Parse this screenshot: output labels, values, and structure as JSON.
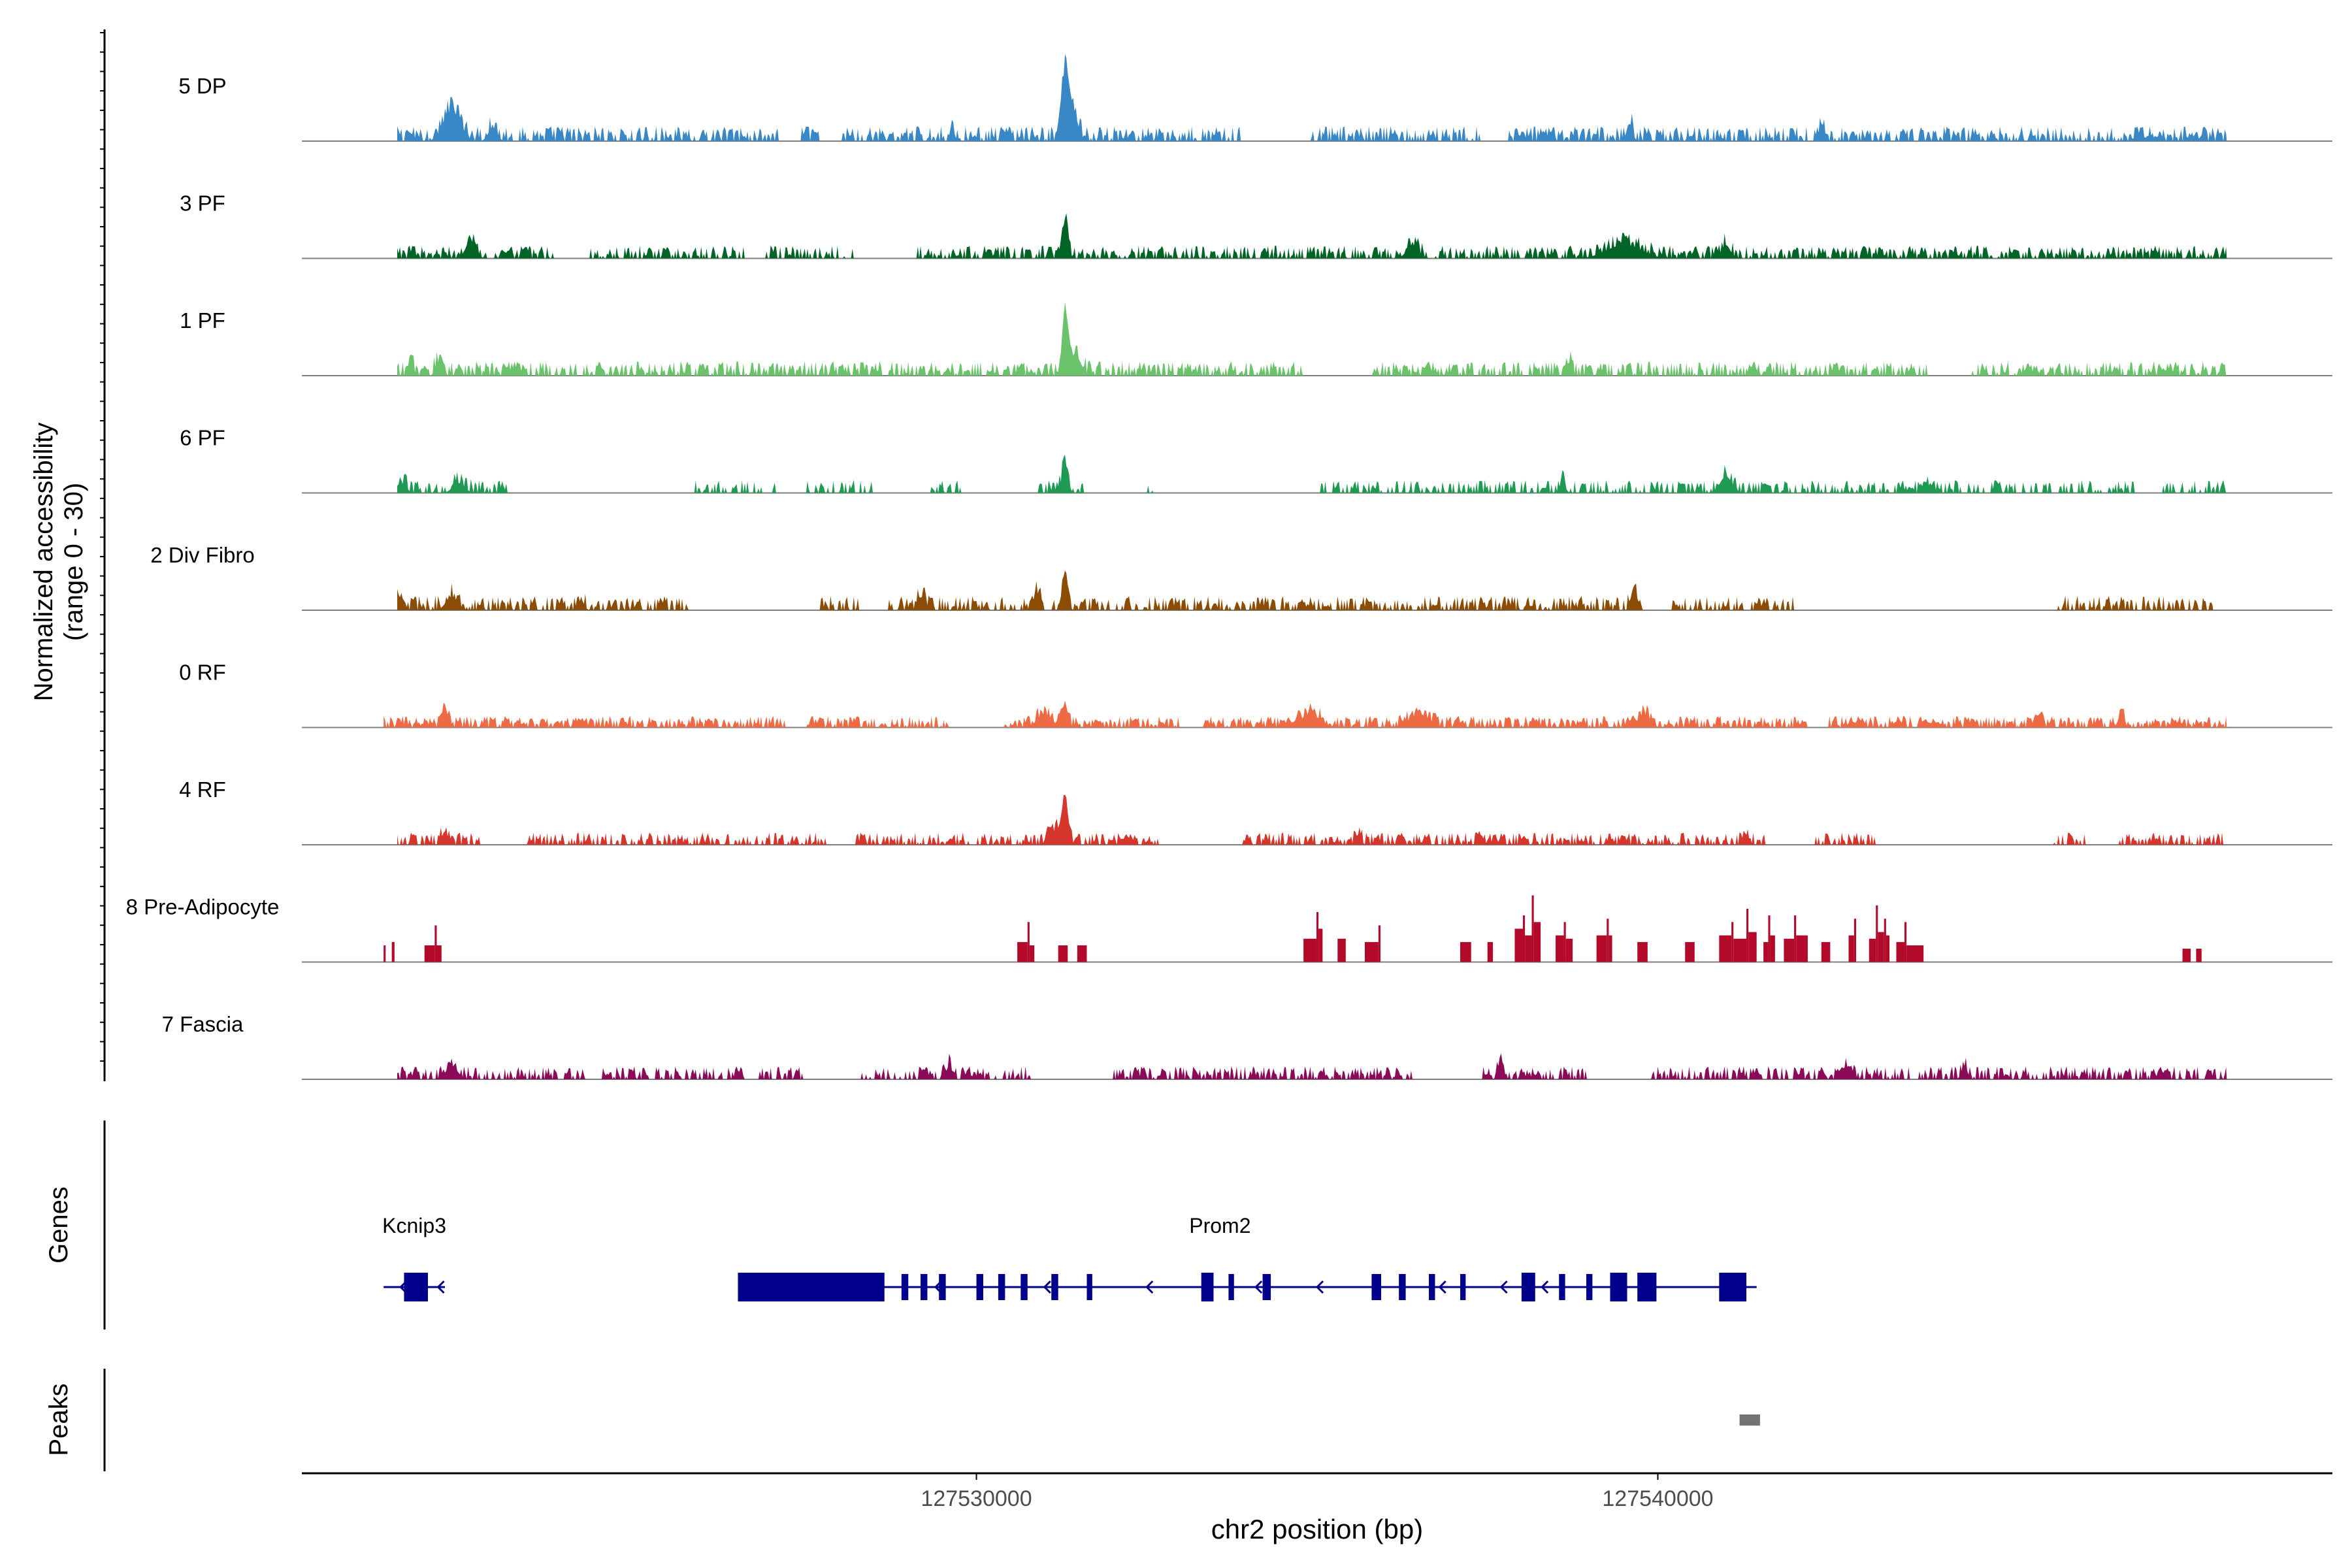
{
  "chart_data": {
    "type": "area",
    "title": "",
    "ylabel_line1": "Normalized accessibility",
    "ylabel_line2": "(range 0 - 30)",
    "xlabel": "chr2 position (bp)",
    "xlim": [
      127520100,
      127549900
    ],
    "ylim": [
      0,
      30
    ],
    "x_ticks": [
      {
        "value": 127530000,
        "label": "127530000"
      },
      {
        "value": 127540000,
        "label": "127540000"
      }
    ],
    "series": [
      {
        "name": "5 DP",
        "color": "#3a87c6",
        "start": 127521500,
        "end": 127548350,
        "base": 1.8,
        "noise": 0.55,
        "sparsity": 0.3,
        "gaps": [
          [
            127527100,
            127527400
          ],
          [
            127527700,
            127528000
          ],
          [
            127533900,
            127534900
          ],
          [
            127537400,
            127537800
          ]
        ],
        "peaks": [
          [
            127522300,
            170,
            9
          ],
          [
            127522900,
            90,
            4
          ],
          [
            127531300,
            70,
            18
          ],
          [
            127531400,
            110,
            10
          ],
          [
            127539600,
            50,
            5
          ],
          [
            127542400,
            60,
            4
          ],
          [
            127529650,
            40,
            4
          ]
        ]
      },
      {
        "name": "3 PF",
        "color": "#006427",
        "start": 127521500,
        "end": 127548350,
        "base": 1.6,
        "noise": 0.5,
        "sparsity": 0.35,
        "gaps": [
          [
            127523800,
            127524300
          ],
          [
            127526600,
            127526900
          ],
          [
            127528200,
            127529100
          ]
        ],
        "peaks": [
          [
            127522600,
            90,
            5
          ],
          [
            127531300,
            60,
            11
          ],
          [
            127536400,
            120,
            4
          ],
          [
            127539500,
            350,
            4
          ],
          [
            127541000,
            90,
            4
          ]
        ]
      },
      {
        "name": "1 PF",
        "color": "#6ac36b",
        "start": 127521500,
        "end": 127548350,
        "base": 1.8,
        "noise": 0.5,
        "sparsity": 0.3,
        "gaps": [
          [
            127534800,
            127535800
          ],
          [
            127544000,
            127544600
          ]
        ],
        "peaks": [
          [
            127521700,
            50,
            4
          ],
          [
            127522100,
            60,
            4
          ],
          [
            127531300,
            60,
            18
          ],
          [
            127531450,
            120,
            6
          ],
          [
            127535300,
            60,
            3
          ],
          [
            127538700,
            60,
            4
          ]
        ]
      },
      {
        "name": "6 PF",
        "color": "#1f9a52",
        "start": 127521500,
        "end": 127548350,
        "base": 1.7,
        "noise": 0.45,
        "sparsity": 0.45,
        "gaps": [
          [
            127523200,
            127525800
          ],
          [
            127527100,
            127527500
          ],
          [
            127528500,
            127529300
          ],
          [
            127529800,
            127530900
          ],
          [
            127531600,
            127532500
          ],
          [
            127532600,
            127535000
          ],
          [
            127547000,
            127547400
          ]
        ],
        "peaks": [
          [
            127521600,
            60,
            3
          ],
          [
            127522400,
            120,
            3
          ],
          [
            127525100,
            40,
            3
          ],
          [
            127527300,
            40,
            2
          ],
          [
            127531300,
            60,
            9
          ],
          [
            127538600,
            60,
            3
          ],
          [
            127541000,
            120,
            5
          ],
          [
            127544000,
            40,
            3
          ]
        ]
      },
      {
        "name": "2 Div Fibro",
        "color": "#8b4c06",
        "start": 127521500,
        "end": 127548150,
        "base": 1.8,
        "noise": 0.5,
        "sparsity": 0.35,
        "gaps": [
          [
            127525800,
            127527700
          ],
          [
            127528300,
            127528700
          ],
          [
            127531000,
            127531100
          ],
          [
            127539800,
            127540200
          ],
          [
            127542000,
            127545800
          ]
        ],
        "peaks": [
          [
            127521500,
            80,
            5
          ],
          [
            127522300,
            120,
            4
          ],
          [
            127524200,
            60,
            3
          ],
          [
            127529200,
            80,
            4
          ],
          [
            127530900,
            90,
            5
          ],
          [
            127531300,
            60,
            8
          ],
          [
            127539650,
            60,
            7
          ]
        ]
      },
      {
        "name": "0 RF",
        "color": "#ee6a44",
        "start": 127521300,
        "end": 127548350,
        "base": 1.5,
        "noise": 0.45,
        "sparsity": 0.25,
        "gaps": [
          [
            127527200,
            127527500
          ],
          [
            127529600,
            127530400
          ],
          [
            127533000,
            127533300
          ],
          [
            127542200,
            127542500
          ]
        ],
        "peaks": [
          [
            127522200,
            60,
            5
          ],
          [
            127531000,
            150,
            4
          ],
          [
            127531300,
            60,
            7
          ],
          [
            127534900,
            200,
            4
          ],
          [
            127536500,
            200,
            4
          ],
          [
            127539800,
            120,
            4
          ],
          [
            127545600,
            60,
            4
          ],
          [
            127546800,
            60,
            4
          ]
        ]
      },
      {
        "name": "4 RF",
        "color": "#d5352a",
        "start": 127521500,
        "end": 127548350,
        "base": 1.6,
        "noise": 0.45,
        "sparsity": 0.35,
        "gaps": [
          [
            127522800,
            127523400
          ],
          [
            127527800,
            127528200
          ],
          [
            127532700,
            127533900
          ],
          [
            127541600,
            127542300
          ],
          [
            127543200,
            127545800
          ],
          [
            127546300,
            127546700
          ]
        ],
        "peaks": [
          [
            127522200,
            60,
            4
          ],
          [
            127531300,
            70,
            13
          ],
          [
            127531150,
            120,
            4
          ],
          [
            127535600,
            60,
            3
          ],
          [
            127537400,
            60,
            3
          ],
          [
            127541300,
            60,
            3
          ]
        ]
      },
      {
        "name": "8 Pre-Adipocyte",
        "color": "#b30a2b",
        "start": 127521300,
        "end": 127548100,
        "base": 0,
        "noise": 0,
        "sparsity": 1,
        "blocks": [
          [
            127521300,
            127521330,
            5
          ],
          [
            127521420,
            127521460,
            6
          ],
          [
            127521900,
            127522050,
            5
          ],
          [
            127522050,
            127522080,
            11
          ],
          [
            127522080,
            127522150,
            5
          ],
          [
            127530600,
            127530750,
            6
          ],
          [
            127530750,
            127530780,
            12
          ],
          [
            127530780,
            127530850,
            5
          ],
          [
            127531200,
            127531340,
            5
          ],
          [
            127531480,
            127531620,
            5
          ],
          [
            127534800,
            127534990,
            7
          ],
          [
            127534990,
            127535020,
            15
          ],
          [
            127535020,
            127535080,
            10
          ],
          [
            127535300,
            127535420,
            7
          ],
          [
            127535700,
            127535900,
            6
          ],
          [
            127535900,
            127535930,
            11
          ],
          [
            127537100,
            127537260,
            6
          ],
          [
            127537500,
            127537580,
            6
          ],
          [
            127537900,
            127538020,
            10
          ],
          [
            127538020,
            127538050,
            14
          ],
          [
            127538050,
            127538150,
            8
          ],
          [
            127538150,
            127538180,
            20
          ],
          [
            127538180,
            127538280,
            12
          ],
          [
            127538500,
            127538620,
            8
          ],
          [
            127538620,
            127538650,
            12
          ],
          [
            127538650,
            127538750,
            7
          ],
          [
            127539100,
            127539250,
            8
          ],
          [
            127539250,
            127539280,
            13
          ],
          [
            127539280,
            127539330,
            8
          ],
          [
            127539700,
            127539850,
            6
          ],
          [
            127540400,
            127540540,
            6
          ],
          [
            127540900,
            127541080,
            8
          ],
          [
            127541080,
            127541110,
            12
          ],
          [
            127541110,
            127541300,
            7
          ],
          [
            127541300,
            127541330,
            16
          ],
          [
            127541330,
            127541450,
            9
          ],
          [
            127541550,
            127541620,
            6
          ],
          [
            127541620,
            127541650,
            14
          ],
          [
            127541650,
            127541720,
            8
          ],
          [
            127541850,
            127542000,
            7
          ],
          [
            127542000,
            127542030,
            14
          ],
          [
            127542030,
            127542200,
            8
          ],
          [
            127542400,
            127542530,
            6
          ],
          [
            127542800,
            127542880,
            8
          ],
          [
            127542880,
            127542910,
            13
          ],
          [
            127543100,
            127543200,
            7
          ],
          [
            127543200,
            127543230,
            17
          ],
          [
            127543230,
            127543320,
            9
          ],
          [
            127543320,
            127543350,
            13
          ],
          [
            127543350,
            127543400,
            8
          ],
          [
            127543500,
            127543620,
            6
          ],
          [
            127543620,
            127543650,
            12
          ],
          [
            127543650,
            127543900,
            5
          ],
          [
            127547700,
            127547820,
            4
          ],
          [
            127547900,
            127547980,
            4
          ]
        ]
      },
      {
        "name": "7 Fascia",
        "color": "#8a0b57",
        "start": 127521500,
        "end": 127548350,
        "base": 1.7,
        "noise": 0.45,
        "sparsity": 0.35,
        "gaps": [
          [
            127524300,
            127524500
          ],
          [
            127526600,
            127526800
          ],
          [
            127527500,
            127528300
          ],
          [
            127530800,
            127532000
          ],
          [
            127536400,
            127537400
          ],
          [
            127539000,
            127539900
          ]
        ],
        "peaks": [
          [
            127522300,
            120,
            4
          ],
          [
            127529600,
            60,
            4
          ],
          [
            127531300,
            60,
            4
          ],
          [
            127537700,
            60,
            4
          ],
          [
            127542800,
            90,
            4
          ],
          [
            127544500,
            60,
            4
          ]
        ]
      }
    ],
    "genes": [
      {
        "name": "Kcnip3",
        "start": 127521300,
        "end": 127522200,
        "strand": "-",
        "exons": [
          [
            127521600,
            127521950
          ]
        ]
      },
      {
        "name": "Prom2",
        "start": 127526500,
        "end": 127541450,
        "strand": "-",
        "exons": [
          [
            127526500,
            127528650
          ],
          [
            127528900,
            127529000
          ],
          [
            127529180,
            127529280
          ],
          [
            127529450,
            127529550
          ],
          [
            127530000,
            127530100
          ],
          [
            127530320,
            127530420
          ],
          [
            127530650,
            127530750
          ],
          [
            127531100,
            127531200
          ],
          [
            127531620,
            127531700
          ],
          [
            127533300,
            127533480
          ],
          [
            127533700,
            127533780
          ],
          [
            127534200,
            127534320
          ],
          [
            127535800,
            127535940
          ],
          [
            127536200,
            127536300
          ],
          [
            127536640,
            127536730
          ],
          [
            127537100,
            127537180
          ],
          [
            127538000,
            127538200
          ],
          [
            127538550,
            127538640
          ],
          [
            127538950,
            127539040
          ],
          [
            127539300,
            127539550
          ],
          [
            127539700,
            127539980
          ],
          [
            127540900,
            127541300
          ]
        ],
        "arrows": [
          127521550,
          127522100,
          127529400,
          127531000,
          127532500,
          127534100,
          127535000,
          127536800,
          127537700,
          127538300
        ]
      }
    ],
    "peaks_track": [
      [
        127541200,
        127541500
      ]
    ],
    "track_labels": {
      "genes": "Genes",
      "peaks": "Peaks"
    }
  }
}
